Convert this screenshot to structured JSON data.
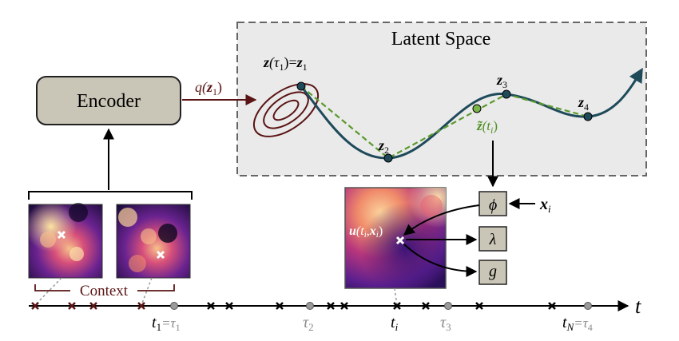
{
  "colors": {
    "latent_box_fill": "#eaeaea",
    "latent_box_stroke": "#666666",
    "encoder_fill": "#c9c5b7",
    "box_fill": "#c9c5b7",
    "trajectory": "#1e4a5a",
    "dashed": "#5a9a2c",
    "context_red": "#5a1414",
    "gray_text": "#8a8a8a"
  },
  "labels": {
    "latent_space": "Latent Space",
    "encoder": "Encoder",
    "q_main": "q(",
    "q_var": "z",
    "q_sub": "1",
    "q_close": ")",
    "context": "Context",
    "t_axis": "t"
  },
  "latent": {
    "z_tau1_a": "z",
    "z_tau1_b": "(τ",
    "z_tau1_sub": "1",
    "z_tau1_c": ")=",
    "z_tau1_d": "z",
    "z_tau1_sub2": "1",
    "z2": "z",
    "z2_sub": "2",
    "z3": "z",
    "z3_sub": "3",
    "z4": "z",
    "z4_sub": "4",
    "ztilde": "z̃",
    "ztilde_arg": "(t",
    "ztilde_sub": "i",
    "ztilde_close": ")"
  },
  "decoder": {
    "phi": "ϕ",
    "lambda": "λ",
    "g": "g",
    "x_var": "x",
    "x_sub": "i",
    "u_label_a": "u",
    "u_label_b": "(t",
    "u_label_sub": "i",
    "u_label_c": ",",
    "u_label_x": "x",
    "u_label_sub2": "i",
    "u_label_d": ")"
  },
  "timeline": {
    "t1_a": "t",
    "t1_sub": "1",
    "t1_eq": "=τ",
    "t1_sub2": "1",
    "tau2": "τ",
    "tau2_sub": "2",
    "ti": "t",
    "ti_sub": "i",
    "tau3": "τ",
    "tau3_sub": "3",
    "tN": "t",
    "tN_sub": "N",
    "tN_eq": "=τ",
    "tN_sub2": "4"
  },
  "icons": [
    "encoder-box",
    "heatmap-image",
    "cross-marker",
    "dot-marker",
    "arrow-icon"
  ]
}
